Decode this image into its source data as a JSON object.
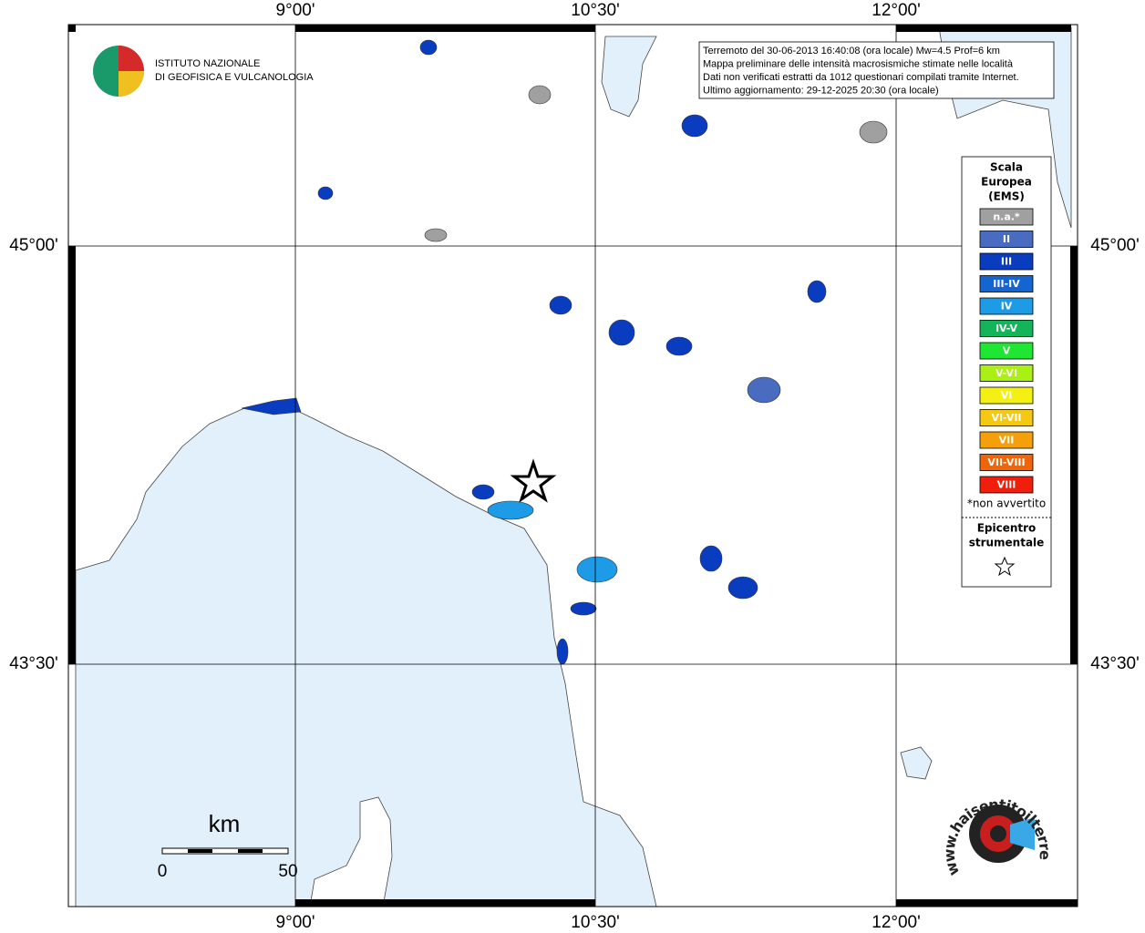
{
  "grid": {
    "lon_labels": [
      "9°00'",
      "10°30'",
      "12°00'"
    ],
    "lat_labels": [
      "45°00'",
      "43°30'"
    ]
  },
  "institute": {
    "line1": "ISTITUTO NAZIONALE",
    "line2": "DI GEOFISICA E VULCANOLOGIA"
  },
  "info_box": [
    "Terremoto del 30-06-2013 16:40:08 (ora locale) Mw=4.5 Prof=6 km",
    "Mappa preliminare delle intensità macrosismiche stimate nelle località",
    "Dati non verificati estratti da 1012 questionari compilati tramite Internet.",
    "Ultimo aggiornamento: 29-12-2025 20:30 (ora locale)"
  ],
  "legend": {
    "title": [
      "Scala",
      "Europea",
      "(EMS)"
    ],
    "items": [
      {
        "label": "n.a.*",
        "color": "#a0a0a0"
      },
      {
        "label": "II",
        "color": "#4a6cc0"
      },
      {
        "label": "III",
        "color": "#0a3cc0"
      },
      {
        "label": "III-IV",
        "color": "#1464d2"
      },
      {
        "label": "IV",
        "color": "#1e9be6"
      },
      {
        "label": "IV-V",
        "color": "#14b45a"
      },
      {
        "label": "V",
        "color": "#1ee632"
      },
      {
        "label": "V-VI",
        "color": "#aaf014"
      },
      {
        "label": "VI",
        "color": "#f5f014"
      },
      {
        "label": "VI-VII",
        "color": "#f5c814"
      },
      {
        "label": "VII",
        "color": "#f5a00a"
      },
      {
        "label": "VII-VIII",
        "color": "#f0640a"
      },
      {
        "label": "VIII",
        "color": "#f01e0a"
      }
    ],
    "note": "*non avvertito",
    "epicenter": [
      "Epicentro",
      "strumentale"
    ]
  },
  "scale_bar": {
    "unit": "km",
    "start": "0",
    "end": "50"
  },
  "website": "www.haisentitoilterremoto.it"
}
